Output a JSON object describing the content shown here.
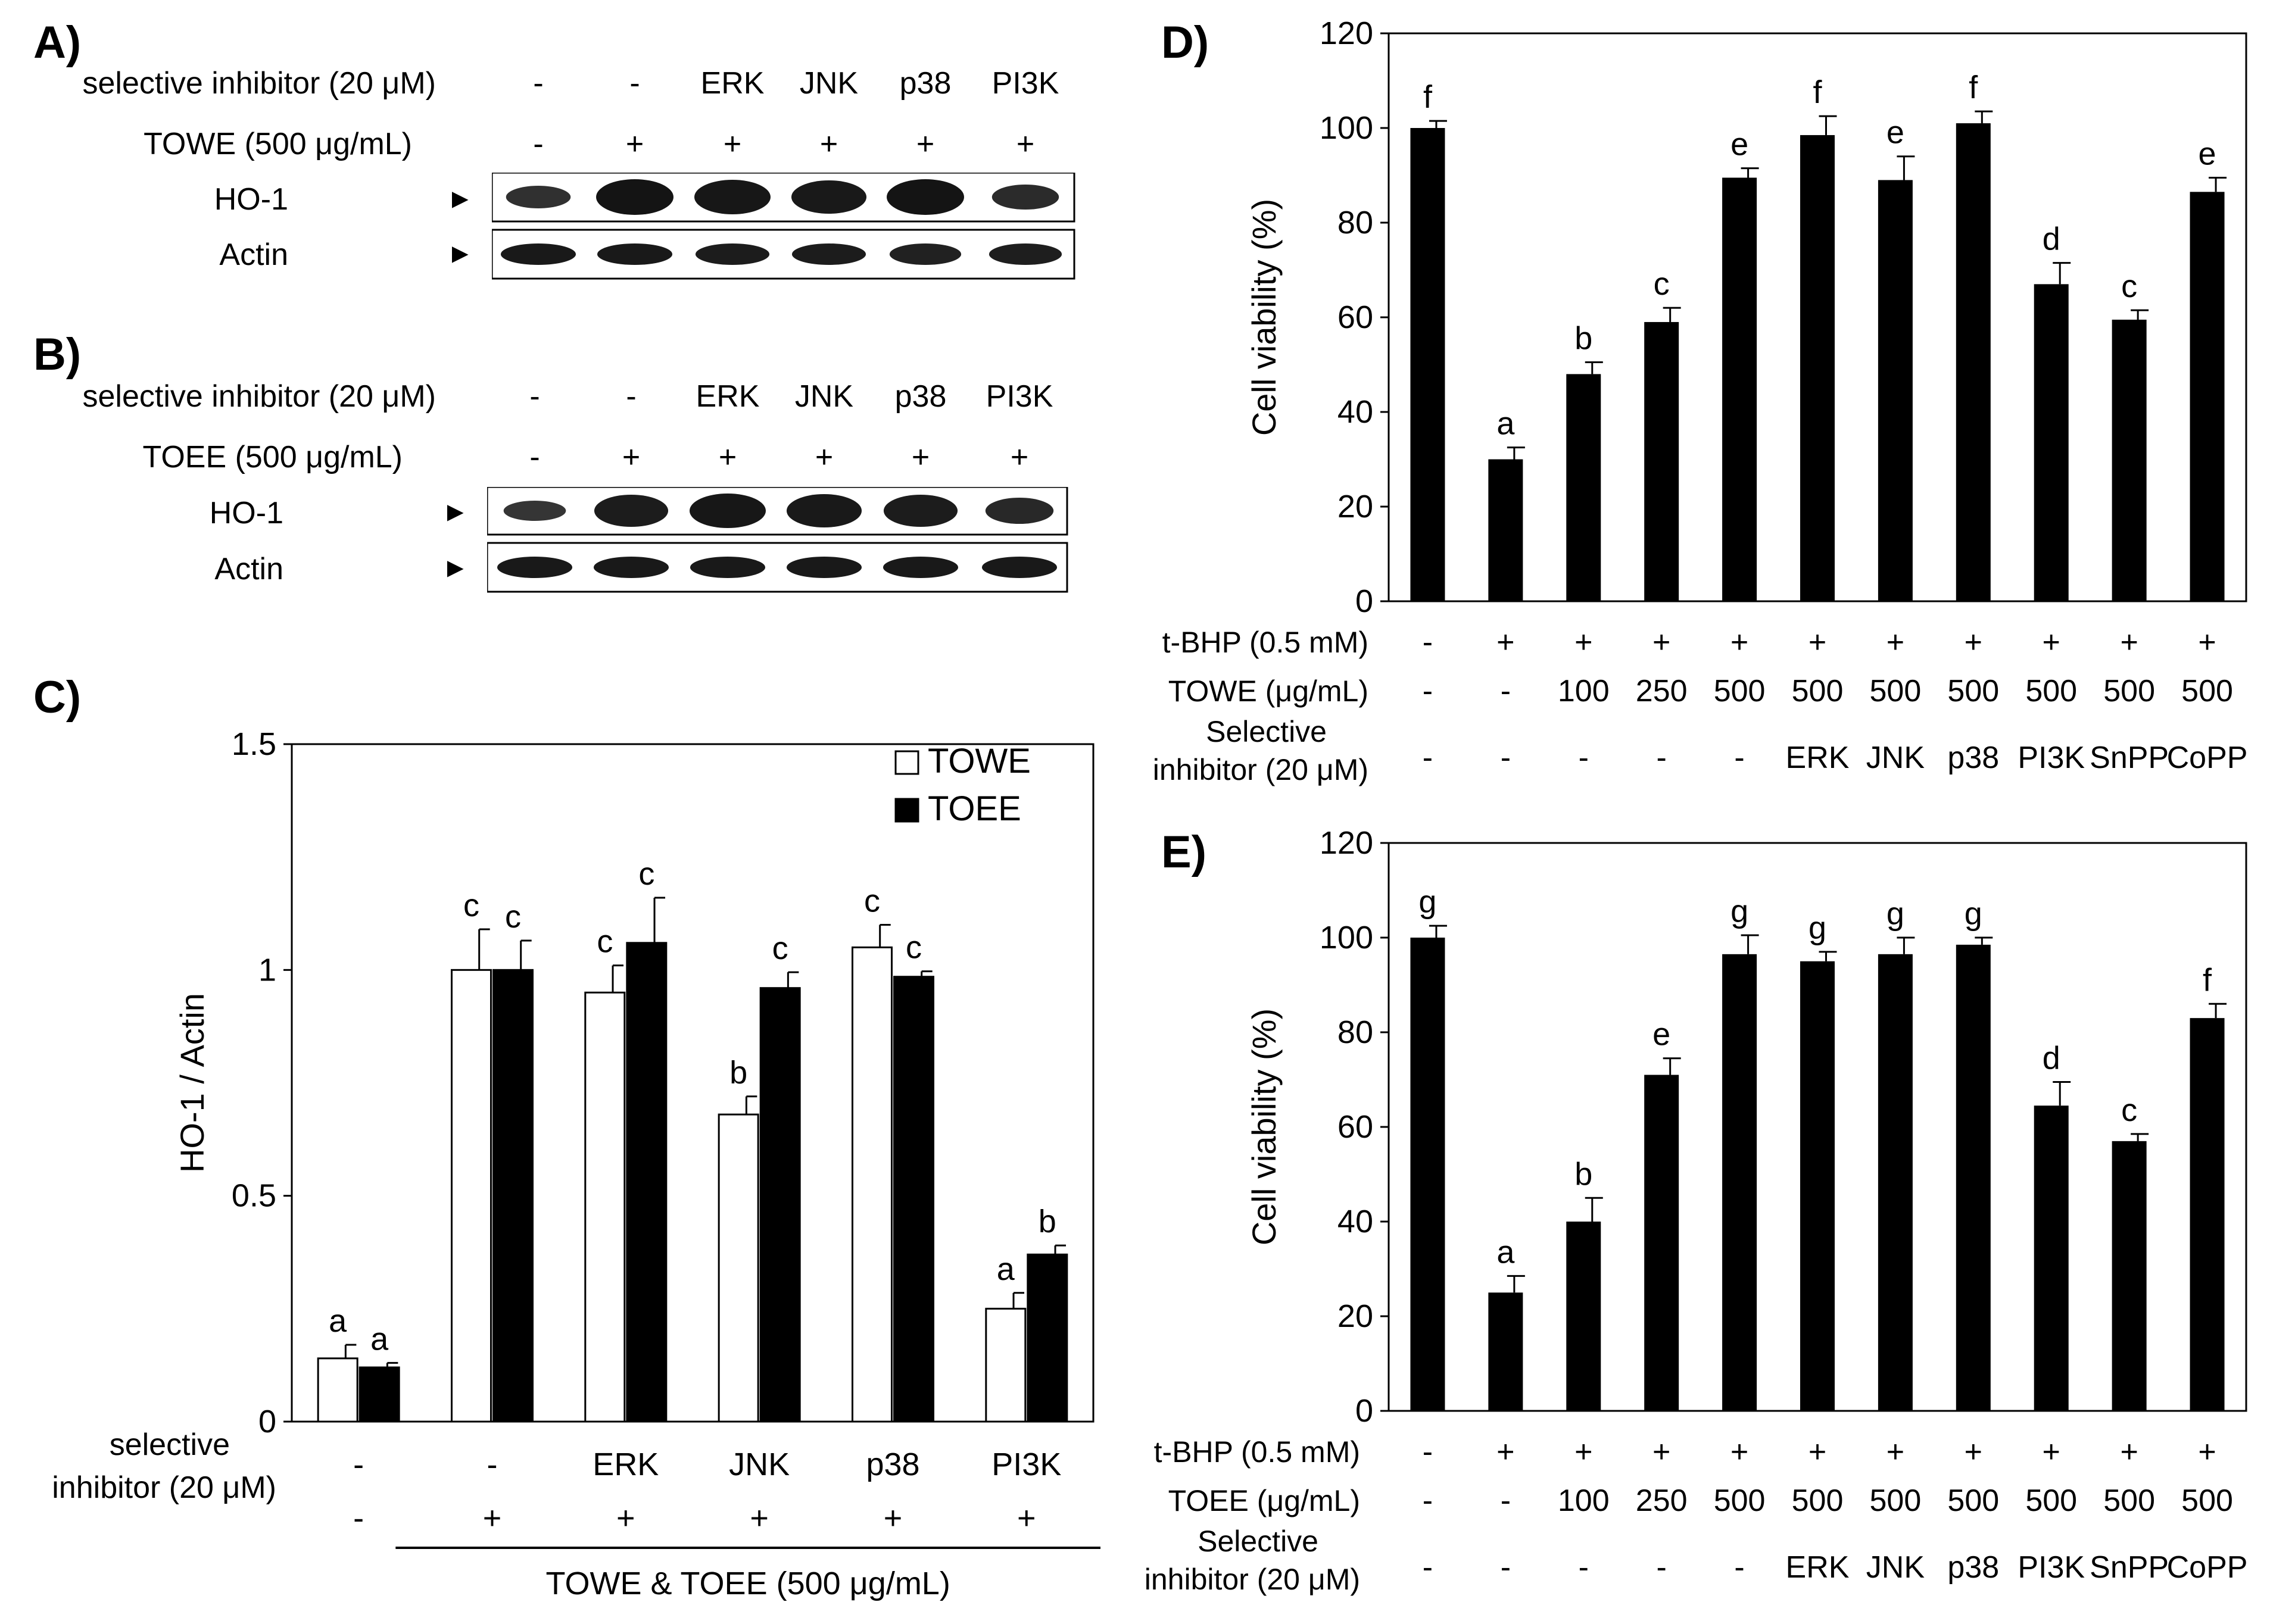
{
  "panel_a": {
    "label": "A)",
    "rows": [
      {
        "label": "selective inhibitor (20 μM)",
        "values": [
          "-",
          "-",
          "ERK",
          "JNK",
          "p38",
          "PI3K"
        ]
      },
      {
        "label": "TOWE (500 μg/mL)",
        "values": [
          "-",
          "+",
          "+",
          "+",
          "+",
          "+"
        ]
      }
    ],
    "blots": [
      {
        "label": "HO-1",
        "marker": "►",
        "intensity": [
          0.45,
          1.0,
          0.95,
          0.9,
          1.0,
          0.55
        ]
      },
      {
        "label": "Actin",
        "marker": "►",
        "intensity": [
          0.9,
          0.9,
          0.85,
          0.85,
          0.75,
          0.8
        ]
      }
    ]
  },
  "panel_b": {
    "label": "B)",
    "rows": [
      {
        "label": "selective inhibitor (20 μM)",
        "values": [
          "-",
          "-",
          "ERK",
          "JNK",
          "p38",
          "PI3K"
        ]
      },
      {
        "label": "TOEE (500 μg/mL)",
        "values": [
          "-",
          "+",
          "+",
          "+",
          "+",
          "+"
        ]
      }
    ],
    "blots": [
      {
        "label": "HO-1",
        "marker": "►",
        "intensity": [
          0.35,
          0.85,
          0.95,
          0.9,
          0.85,
          0.6
        ]
      },
      {
        "label": "Actin",
        "marker": "►",
        "intensity": [
          0.9,
          0.9,
          0.9,
          0.9,
          0.9,
          0.9
        ]
      }
    ]
  },
  "chart_data": [
    {
      "id": "C",
      "panel_label": "C)",
      "type": "bar",
      "ylabel": "HO-1 / Actin",
      "ylim": [
        0,
        1.5
      ],
      "yticks": [
        "0",
        "0.5",
        "1",
        "1.5"
      ],
      "ytick_values": [
        0,
        0.5,
        1,
        1.5
      ],
      "categories": [
        "-",
        "-",
        "ERK",
        "JNK",
        "p38",
        "PI3K"
      ],
      "row_label_line1": "selective",
      "row_label_line2": "inhibitor (20 μM)",
      "second_row": [
        "-",
        "+",
        "+",
        "+",
        "+",
        "+"
      ],
      "underline_label": "TOWE & TOEE (500 μg/mL)",
      "legend_position": "top-right",
      "series": [
        {
          "name": "TOWE",
          "color": "#ffffff",
          "values": [
            0.14,
            1.0,
            0.95,
            0.68,
            1.05,
            0.25
          ],
          "errors": [
            0.03,
            0.09,
            0.06,
            0.04,
            0.05,
            0.035
          ],
          "letters": [
            "a",
            "c",
            "c",
            "b",
            "c",
            "a"
          ]
        },
        {
          "name": "TOEE",
          "color": "#000000",
          "values": [
            0.12,
            1.0,
            1.06,
            0.96,
            0.985,
            0.37
          ],
          "errors": [
            0.01,
            0.065,
            0.1,
            0.035,
            0.012,
            0.02
          ],
          "letters": [
            "a",
            "c",
            "c",
            "c",
            "c",
            "b"
          ]
        }
      ]
    },
    {
      "id": "D",
      "panel_label": "D)",
      "type": "bar",
      "ylabel": "Cell viability (%)",
      "ylim": [
        0,
        120
      ],
      "yticks": [
        "0",
        "20",
        "40",
        "60",
        "80",
        "100",
        "120"
      ],
      "ytick_values": [
        0,
        20,
        40,
        60,
        80,
        100,
        120
      ],
      "values": [
        100,
        30,
        48,
        59,
        89.5,
        98.5,
        89,
        101,
        67,
        59.5,
        86.5
      ],
      "errors": [
        1.5,
        2.5,
        2.5,
        3,
        2,
        4,
        5,
        2.5,
        4.5,
        2,
        3
      ],
      "letters": [
        "f",
        "a",
        "b",
        "c",
        "e",
        "f",
        "e",
        "f",
        "d",
        "c",
        "e"
      ],
      "rows": [
        {
          "label": "t-BHP (0.5 mM)",
          "values": [
            "-",
            "+",
            "+",
            "+",
            "+",
            "+",
            "+",
            "+",
            "+",
            "+",
            "+"
          ]
        },
        {
          "label": "TOWE (μg/mL)",
          "values": [
            "-",
            "-",
            "100",
            "250",
            "500",
            "500",
            "500",
            "500",
            "500",
            "500",
            "500"
          ]
        },
        {
          "label_line1": "Selective",
          "label_line2": "inhibitor (20 μM)",
          "values": [
            "-",
            "-",
            "-",
            "-",
            "-",
            "ERK",
            "JNK",
            "p38",
            "PI3K",
            "SnPP",
            "CoPP"
          ]
        }
      ]
    },
    {
      "id": "E",
      "panel_label": "E)",
      "type": "bar",
      "ylabel": "Cell viability (%)",
      "ylim": [
        0,
        120
      ],
      "yticks": [
        "0",
        "20",
        "40",
        "60",
        "80",
        "100",
        "120"
      ],
      "ytick_values": [
        0,
        20,
        40,
        60,
        80,
        100,
        120
      ],
      "values": [
        100,
        25,
        40,
        71,
        96.5,
        95,
        96.5,
        98.5,
        64.5,
        57,
        83
      ],
      "errors": [
        2.5,
        3.5,
        5,
        3.5,
        4,
        2,
        3.5,
        1.5,
        5,
        1.5,
        3
      ],
      "letters": [
        "g",
        "a",
        "b",
        "e",
        "g",
        "g",
        "g",
        "g",
        "d",
        "c",
        "f"
      ],
      "rows": [
        {
          "label": "t-BHP (0.5 mM)",
          "values": [
            "-",
            "+",
            "+",
            "+",
            "+",
            "+",
            "+",
            "+",
            "+",
            "+",
            "+"
          ]
        },
        {
          "label": "TOEE (μg/mL)",
          "values": [
            "-",
            "-",
            "100",
            "250",
            "500",
            "500",
            "500",
            "500",
            "500",
            "500",
            "500"
          ]
        },
        {
          "label_line1": "Selective",
          "label_line2": "inhibitor (20 μM)",
          "values": [
            "-",
            "-",
            "-",
            "-",
            "-",
            "ERK",
            "JNK",
            "p38",
            "PI3K",
            "SnPP",
            "CoPP"
          ]
        }
      ]
    }
  ]
}
